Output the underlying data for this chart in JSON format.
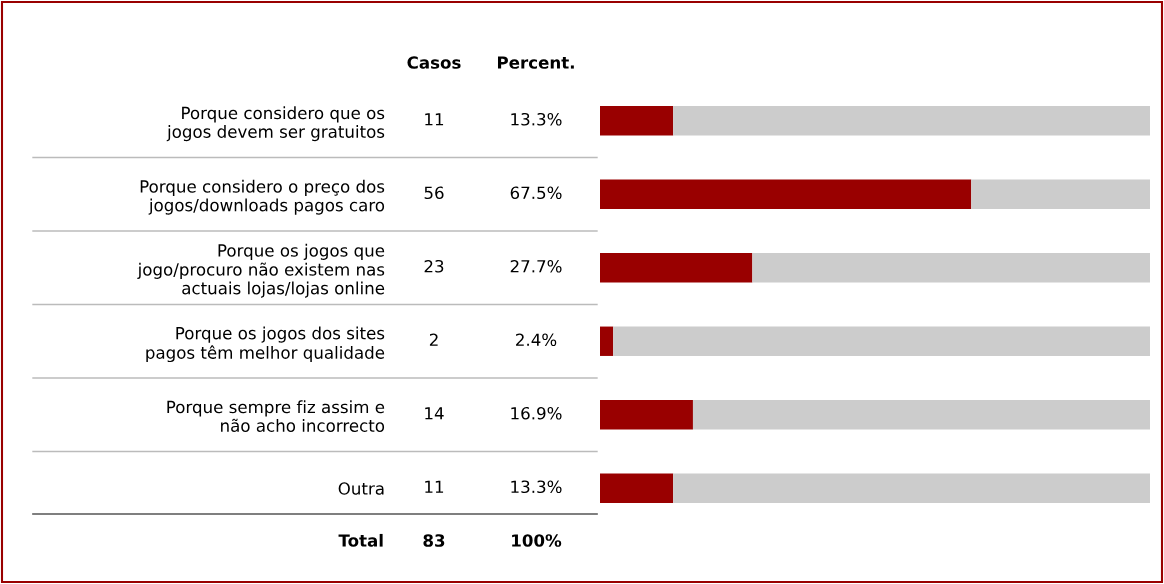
{
  "chart_data": {
    "type": "bar",
    "orientation": "horizontal",
    "stacked": true,
    "tick_labels": "y",
    "categories": [
      "Porque considero que os\njogos devem ser gratuitos",
      "Porque considero o preço dos\njogos/downloads pagos caro",
      "Porque os jogos que\njogo/procuro não existem nas\nactuais lojas/lojas online",
      "Porque os jogos dos sites\npagos têm melhor qualidade",
      "Porque sempre fiz assim e\nnão acho incorrecto",
      "Outra"
    ],
    "series": [
      {
        "color": "#990000",
        "values": [
          13.3,
          67.5,
          27.7,
          2.4,
          16.9,
          13.3
        ],
        "value_labels": [
          "13.3%",
          "67.5%",
          "27.7%",
          "2.4%",
          "16.9%",
          "13.3%"
        ]
      },
      {
        "color": "#cccccc",
        "values": [
          86.7,
          32.5,
          72.3,
          97.6,
          83.1,
          86.7
        ]
      }
    ],
    "xlim": [
      0,
      100
    ],
    "annotations": [
      "Casos",
      "Percent.",
      "11",
      "56",
      "23",
      "2",
      "14",
      "11",
      "Total",
      "83",
      "100%"
    ]
  }
}
